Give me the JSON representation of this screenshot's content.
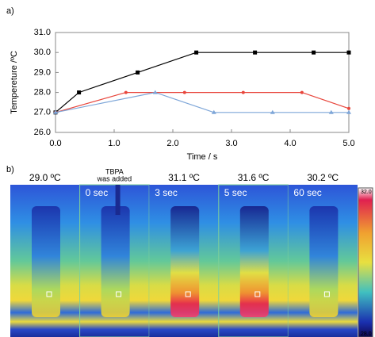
{
  "panel_a_label": "a)",
  "chart_data": {
    "type": "line",
    "x_label": "Time / s",
    "y_label": "Tempereture /ºC",
    "xlim": [
      0,
      5
    ],
    "ylim": [
      26,
      31
    ],
    "xticks": [
      {
        "value": 0,
        "label": "0.0"
      },
      {
        "value": 1,
        "label": "1.0"
      },
      {
        "value": 2,
        "label": "2.0"
      },
      {
        "value": 3,
        "label": "3.0"
      },
      {
        "value": 4,
        "label": "4.0"
      },
      {
        "value": 5,
        "label": "5.0"
      }
    ],
    "yticks": [
      {
        "value": 26,
        "label": "26.0"
      },
      {
        "value": 27,
        "label": "27.0"
      },
      {
        "value": 28,
        "label": "28.0"
      },
      {
        "value": 29,
        "label": "29.0"
      },
      {
        "value": 30,
        "label": "30.0"
      },
      {
        "value": 31,
        "label": "31.0"
      }
    ],
    "grid": false,
    "series": [
      {
        "color": "#000000",
        "marker": "square",
        "x": [
          0,
          0.4,
          1.4,
          2.4,
          3.4,
          4.4,
          5
        ],
        "values": [
          27,
          28,
          29,
          30,
          30,
          30,
          30
        ]
      },
      {
        "color": "#e8463c",
        "marker": "circle",
        "x": [
          0,
          1.2,
          2.2,
          3.2,
          4.2,
          5
        ],
        "values": [
          27,
          28,
          28,
          28,
          28,
          27.2
        ]
      },
      {
        "color": "#7ea6d8",
        "marker": "triangle",
        "x": [
          0,
          1.7,
          2.7,
          3.7,
          4.7,
          5
        ],
        "values": [
          27,
          28,
          27,
          27,
          27,
          27
        ]
      }
    ]
  },
  "panel_b": {
    "label": "b)",
    "frames": [
      {
        "temperature": "29.0 ºC"
      },
      {
        "note": [
          "TBPA",
          "was added"
        ],
        "time": "0 sec"
      },
      {
        "temperature": "31.1 ºC",
        "time": "3 sec"
      },
      {
        "temperature": "31.6 ºC",
        "time": "5 sec"
      },
      {
        "temperature": "30.2 ºC",
        "time": "60 sec"
      }
    ],
    "colorbar": {
      "max": "32.0",
      "min": "28.0"
    }
  }
}
